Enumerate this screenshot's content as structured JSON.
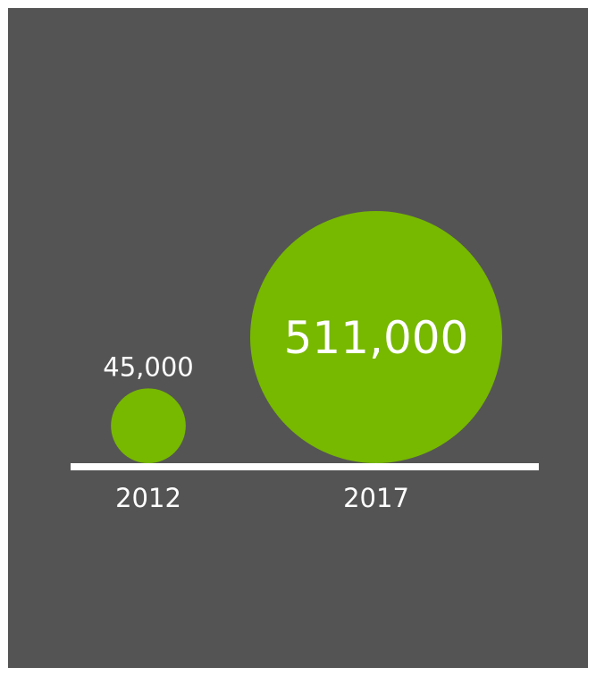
{
  "chart_data": {
    "type": "bubble",
    "categories": [
      "2012",
      "2017"
    ],
    "values": [
      45000,
      511000
    ],
    "value_labels": [
      "45,000",
      "511,000"
    ],
    "title": "",
    "xlabel": "",
    "ylabel": ""
  },
  "colors": {
    "background": "#545454",
    "bubble": "#77b800",
    "baseline": "#ffffff",
    "text": "#ffffff"
  }
}
